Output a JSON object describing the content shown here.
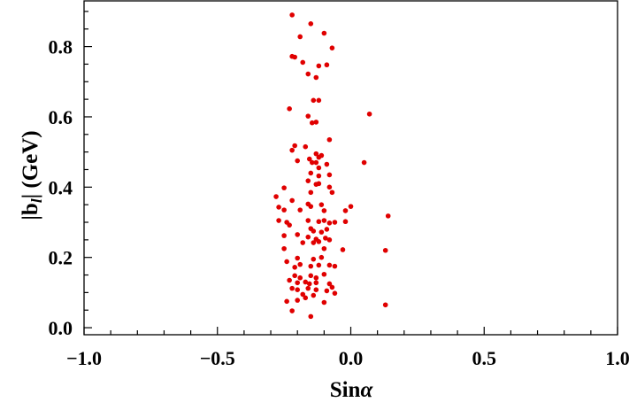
{
  "chart_data": {
    "type": "scatter",
    "title": "",
    "xlabel_main": "Sin",
    "xlabel_symbol": "α",
    "ylabel_main": "|b",
    "ylabel_sub": "l",
    "ylabel_rest": "| (GeV)",
    "xlim": [
      -1.0,
      1.0
    ],
    "ylim": [
      -0.02,
      0.93
    ],
    "xticks": [
      -1.0,
      -0.5,
      0.0,
      0.5,
      1.0
    ],
    "xtick_labels": [
      "−1.0",
      "−0.5",
      "0.0",
      "0.5",
      "1.0"
    ],
    "yticks": [
      0.0,
      0.2,
      0.4,
      0.6,
      0.8
    ],
    "ytick_labels": [
      "0.0",
      "0.2",
      "0.4",
      "0.6",
      "0.8"
    ],
    "grid": false,
    "point_color": "#e00000",
    "series": [
      {
        "points": [
          [
            -0.22,
            0.89
          ],
          [
            -0.15,
            0.865
          ],
          [
            -0.19,
            0.828
          ],
          [
            -0.1,
            0.838
          ],
          [
            -0.07,
            0.796
          ],
          [
            -0.22,
            0.772
          ],
          [
            -0.21,
            0.77
          ],
          [
            -0.18,
            0.755
          ],
          [
            -0.12,
            0.745
          ],
          [
            -0.09,
            0.748
          ],
          [
            -0.16,
            0.722
          ],
          [
            -0.13,
            0.712
          ],
          [
            -0.14,
            0.647
          ],
          [
            -0.12,
            0.647
          ],
          [
            -0.23,
            0.623
          ],
          [
            -0.16,
            0.602
          ],
          [
            -0.13,
            0.585
          ],
          [
            -0.145,
            0.583
          ],
          [
            0.07,
            0.608
          ],
          [
            -0.08,
            0.535
          ],
          [
            -0.21,
            0.518
          ],
          [
            -0.17,
            0.515
          ],
          [
            -0.22,
            0.505
          ],
          [
            -0.13,
            0.495
          ],
          [
            -0.12,
            0.485
          ],
          [
            -0.11,
            0.49
          ],
          [
            -0.145,
            0.47
          ],
          [
            -0.13,
            0.47
          ],
          [
            -0.155,
            0.48
          ],
          [
            -0.2,
            0.475
          ],
          [
            -0.09,
            0.465
          ],
          [
            -0.12,
            0.455
          ],
          [
            0.05,
            0.47
          ],
          [
            -0.15,
            0.44
          ],
          [
            -0.12,
            0.432
          ],
          [
            -0.08,
            0.435
          ],
          [
            -0.16,
            0.418
          ],
          [
            -0.13,
            0.408
          ],
          [
            -0.12,
            0.41
          ],
          [
            -0.08,
            0.4
          ],
          [
            -0.25,
            0.398
          ],
          [
            -0.15,
            0.385
          ],
          [
            -0.07,
            0.385
          ],
          [
            -0.28,
            0.373
          ],
          [
            -0.22,
            0.362
          ],
          [
            -0.16,
            0.352
          ],
          [
            -0.27,
            0.343
          ],
          [
            -0.25,
            0.335
          ],
          [
            -0.19,
            0.335
          ],
          [
            -0.15,
            0.345
          ],
          [
            -0.11,
            0.35
          ],
          [
            -0.1,
            0.333
          ],
          [
            -0.02,
            0.333
          ],
          [
            0.0,
            0.345
          ],
          [
            -0.27,
            0.305
          ],
          [
            -0.24,
            0.3
          ],
          [
            -0.23,
            0.292
          ],
          [
            -0.16,
            0.305
          ],
          [
            -0.12,
            0.302
          ],
          [
            -0.1,
            0.305
          ],
          [
            -0.08,
            0.298
          ],
          [
            -0.06,
            0.3
          ],
          [
            -0.02,
            0.302
          ],
          [
            0.14,
            0.318
          ],
          [
            -0.15,
            0.282
          ],
          [
            -0.14,
            0.275
          ],
          [
            -0.11,
            0.272
          ],
          [
            -0.09,
            0.28
          ],
          [
            -0.25,
            0.262
          ],
          [
            -0.2,
            0.265
          ],
          [
            -0.16,
            0.258
          ],
          [
            -0.13,
            0.252
          ],
          [
            -0.095,
            0.255
          ],
          [
            -0.08,
            0.25
          ],
          [
            -0.12,
            0.245
          ],
          [
            -0.18,
            0.242
          ],
          [
            -0.14,
            0.242
          ],
          [
            -0.25,
            0.225
          ],
          [
            -0.1,
            0.225
          ],
          [
            -0.03,
            0.222
          ],
          [
            0.13,
            0.22
          ],
          [
            -0.2,
            0.198
          ],
          [
            -0.14,
            0.195
          ],
          [
            -0.11,
            0.2
          ],
          [
            -0.24,
            0.188
          ],
          [
            -0.19,
            0.18
          ],
          [
            -0.21,
            0.172
          ],
          [
            -0.15,
            0.175
          ],
          [
            -0.12,
            0.178
          ],
          [
            -0.08,
            0.178
          ],
          [
            -0.06,
            0.175
          ],
          [
            -0.21,
            0.148
          ],
          [
            -0.19,
            0.142
          ],
          [
            -0.23,
            0.135
          ],
          [
            -0.15,
            0.148
          ],
          [
            -0.13,
            0.142
          ],
          [
            -0.1,
            0.152
          ],
          [
            -0.2,
            0.128
          ],
          [
            -0.17,
            0.13
          ],
          [
            -0.155,
            0.125
          ],
          [
            -0.13,
            0.128
          ],
          [
            -0.08,
            0.125
          ],
          [
            -0.22,
            0.112
          ],
          [
            -0.2,
            0.108
          ],
          [
            -0.16,
            0.112
          ],
          [
            -0.13,
            0.108
          ],
          [
            -0.09,
            0.105
          ],
          [
            -0.07,
            0.115
          ],
          [
            -0.18,
            0.095
          ],
          [
            -0.14,
            0.092
          ],
          [
            -0.06,
            0.098
          ],
          [
            -0.24,
            0.075
          ],
          [
            -0.2,
            0.078
          ],
          [
            -0.17,
            0.085
          ],
          [
            -0.1,
            0.072
          ],
          [
            -0.22,
            0.048
          ],
          [
            -0.15,
            0.032
          ],
          [
            0.13,
            0.065
          ]
        ]
      }
    ]
  }
}
